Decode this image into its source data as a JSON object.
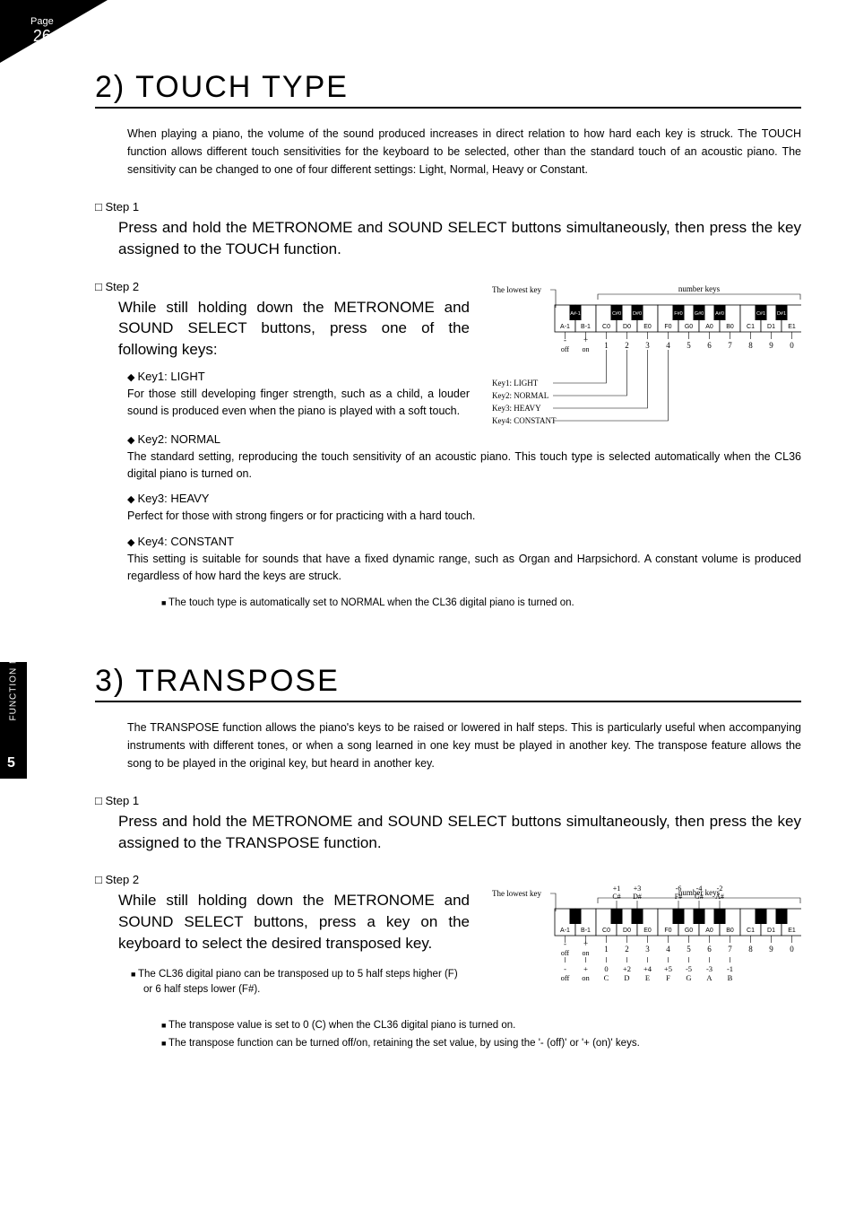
{
  "page": {
    "label": "Page",
    "number": "26",
    "side_tab_number": "5",
    "side_tab_label": "FUNCTION MODE"
  },
  "section1": {
    "title": "2) TOUCH TYPE",
    "intro": "When playing a piano, the volume of the sound produced increases in direct relation to how hard each key is struck.  The TOUCH function allows different touch sensitivities for the keyboard to be selected, other than the standard touch of an acoustic piano. The sensitivity can be changed to one of four different settings: Light, Normal, Heavy or Constant.",
    "step1_label": "Step 1",
    "step1_text": "Press and hold the METRONOME and SOUND SELECT buttons simultaneously, then press the key assigned to the TOUCH function.",
    "step2_label": "Step 2",
    "step2_text": "While still holding down the METRONOME and SOUND SELECT buttons, press one of the following keys:",
    "key1_label": "Key1: LIGHT",
    "key1_desc": "For those still developing finger strength, such as a child, a louder sound is produced even when the piano is played with a soft touch.",
    "key2_label": "Key2: NORMAL",
    "key2_desc": "The standard setting, reproducing the touch sensitivity of an acoustic piano. This touch type is selected automatically when the CL36 digital piano is turned on.",
    "key3_label": "Key3: HEAVY",
    "key3_desc": "Perfect for those with strong fingers or for practicing with a hard touch.",
    "key4_label": "Key4: CONSTANT",
    "key4_desc": "This setting is suitable for sounds that have a fixed dynamic range, such as Organ and Harpsichord.  A constant volume is produced regardless of how hard the keys are struck.",
    "note1": "The touch type is automatically set to NORMAL when the CL36 digital piano is turned on."
  },
  "section2": {
    "title": "3) TRANSPOSE",
    "intro": "The TRANSPOSE function allows the piano's keys to be raised or lowered in half steps. This is particularly useful when accompanying instruments with different tones, or when a song learned in one key must be played in another key. The transpose feature allows the song to be played in the original key, but heard in another key.",
    "step1_label": "Step 1",
    "step1_text": "Press and hold the METRONOME and SOUND SELECT buttons simultaneously, then press the key assigned to the TRANSPOSE function.",
    "step2_label": "Step 2",
    "step2_text": "While still holding down the METRONOME and SOUND SELECT buttons, press a key on the keyboard to select the desired transposed key.",
    "note1": "The CL36 digital piano can be transposed up to 5 half steps higher (F) or 6 half steps lower (F#).",
    "note2": "The transpose value is set to 0 (C) when the CL36 digital piano is turned on.",
    "note3": "The transpose function can be turned off/on, retaining the set value, by using the '- (off)' or '+ (on)' keys."
  },
  "fig1": {
    "lowest_key_label": "The lowest key",
    "number_keys_label": "number keys",
    "off_label": "off",
    "on_label": "on",
    "white_keys": [
      "A-1",
      "B-1",
      "C0",
      "D0",
      "E0",
      "F0",
      "G0",
      "A0",
      "B0",
      "C1",
      "D1",
      "E1"
    ],
    "black_keys_pos": [
      0,
      2,
      3,
      5,
      6,
      7,
      9,
      10
    ],
    "black_key_labels": [
      "A#-1",
      "C#0",
      "D#0",
      "F#0",
      "G#0",
      "A#0",
      "C#1",
      "D#1"
    ],
    "numbers": [
      "1",
      "2",
      "3",
      "4",
      "5",
      "6",
      "7",
      "8",
      "9",
      "0"
    ],
    "map_labels": [
      "Key1: LIGHT",
      "Key2: NORMAL",
      "Key3: HEAVY",
      "Key4: CONSTANT"
    ],
    "colors": {
      "white": "#ffffff",
      "black": "#000000",
      "line": "#000000"
    }
  },
  "fig2": {
    "lowest_key_label": "The lowest key",
    "number_keys_label": "number keys",
    "off_label": "off",
    "on_label": "on",
    "white_keys": [
      "A-1",
      "B-1",
      "C0",
      "D0",
      "E0",
      "F0",
      "G0",
      "A0",
      "B0",
      "C1",
      "D1",
      "E1"
    ],
    "black_keys_pos": [
      0,
      2,
      3,
      5,
      6,
      7,
      9,
      10
    ],
    "black_key_top_labels": [
      "",
      "+1\nC#",
      "+3\nD#",
      "-6\nF#",
      "-4\nG#",
      "-2\nA#",
      "",
      ""
    ],
    "numbers": [
      "1",
      "2",
      "3",
      "4",
      "5",
      "6",
      "7",
      "8",
      "9",
      "0"
    ],
    "bottom_row_top": [
      "-",
      "+",
      "0",
      "+2",
      "+4",
      "+5",
      "-5",
      "-3",
      "-1",
      "",
      ""
    ],
    "bottom_row_bot": [
      "off",
      "on",
      "C",
      "D",
      "E",
      "F",
      "G",
      "A",
      "B",
      "",
      ""
    ],
    "colors": {
      "white": "#ffffff",
      "black": "#000000",
      "line": "#000000"
    }
  }
}
